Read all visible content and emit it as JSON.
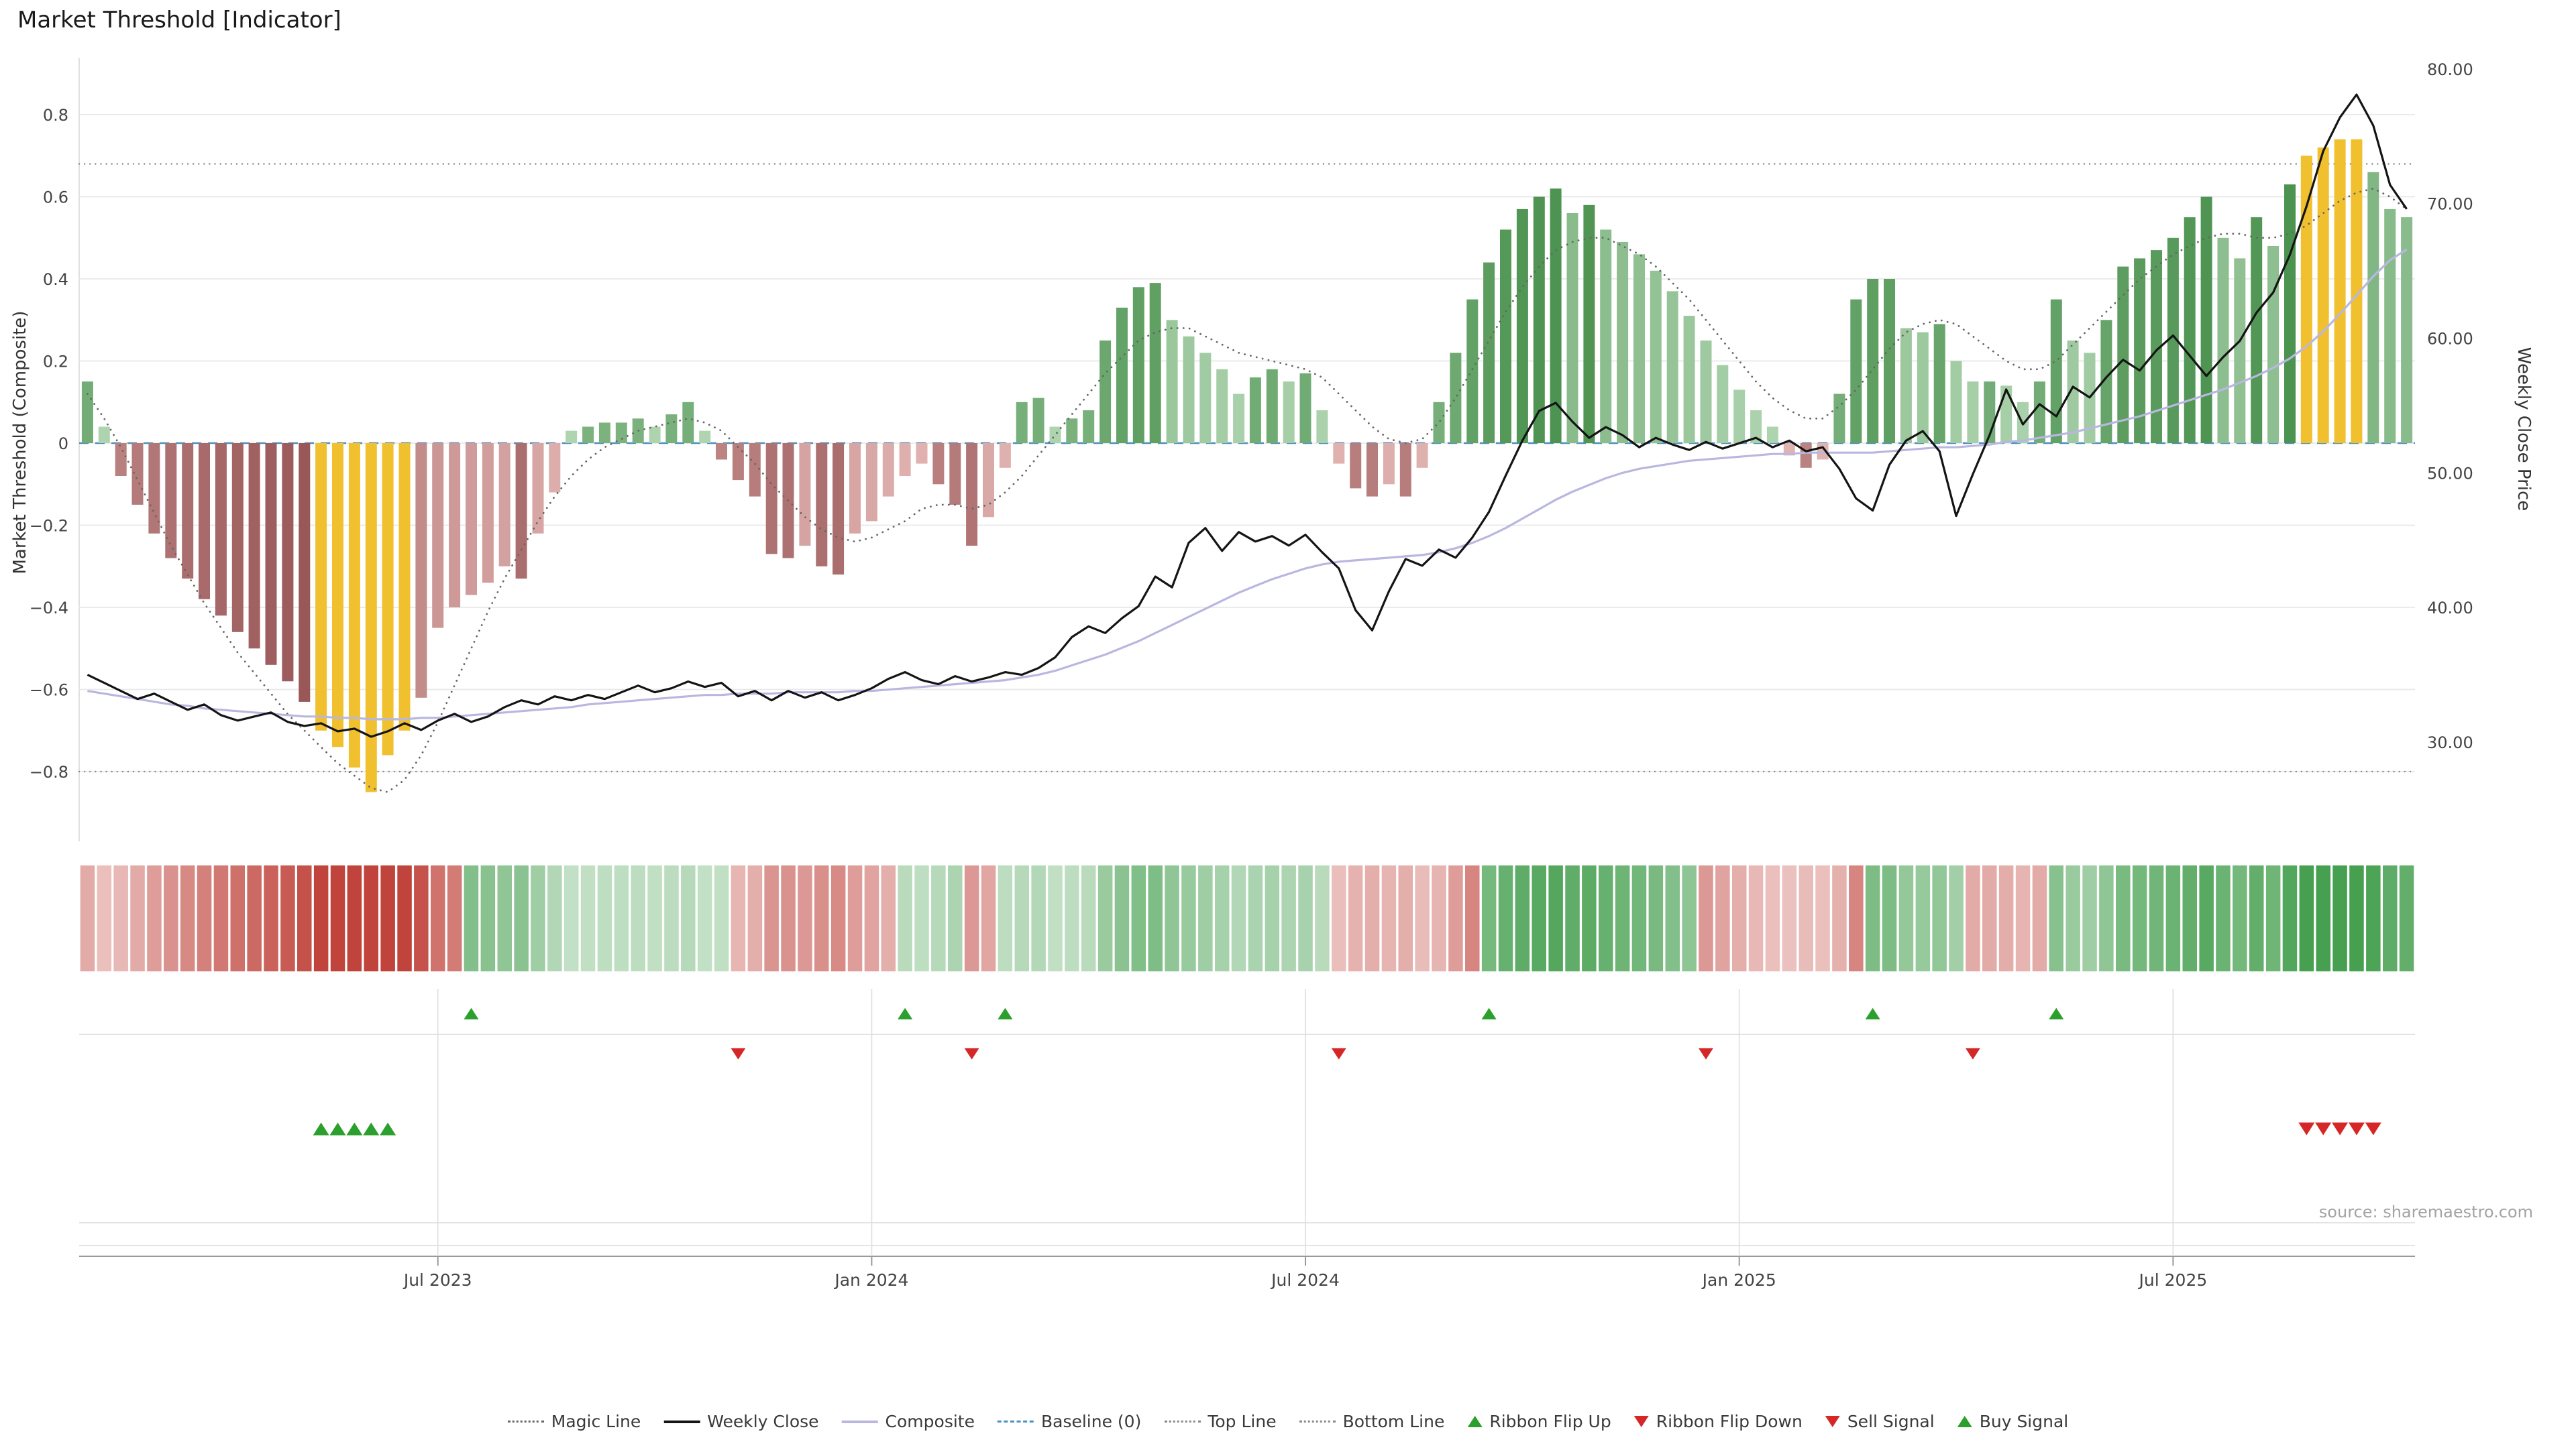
{
  "title": "Market Threshold [Indicator]",
  "left_axis": {
    "label": "Market Threshold (Composite)",
    "ticks": [
      0.8,
      0.6,
      0.4,
      0.2,
      0,
      -0.2,
      -0.4,
      -0.6,
      -0.8
    ]
  },
  "right_axis": {
    "label": "Weekly Close Price",
    "tick_values": [
      80,
      70,
      60,
      50,
      40,
      30
    ],
    "tick_labels": [
      "80.00",
      "70.00",
      "60.00",
      "50.00",
      "40.00",
      "30.00"
    ]
  },
  "x_axis": {
    "tick_labels": [
      "Jul 2023",
      "Jan 2024",
      "Jul 2024",
      "Jan 2025",
      "Jul 2025"
    ],
    "tick_weeks": [
      21,
      47,
      73,
      99,
      125
    ]
  },
  "source": "source: sharemaestro.com",
  "legend": [
    {
      "label": "Magic Line",
      "swatch": "dotted",
      "color": "#666666"
    },
    {
      "label": "Weekly Close",
      "swatch": "solid",
      "color": "#141414"
    },
    {
      "label": "Composite",
      "swatch": "solid",
      "color": "#b9b7e0"
    },
    {
      "label": "Baseline (0)",
      "swatch": "dashed",
      "color": "#4a90c2"
    },
    {
      "label": "Top Line",
      "swatch": "dotted",
      "color": "#888888"
    },
    {
      "label": "Bottom Line",
      "swatch": "dotted",
      "color": "#888888"
    },
    {
      "label": "Ribbon Flip Up",
      "swatch": "tri-up",
      "color": "#2ca02c"
    },
    {
      "label": "Ribbon Flip Down",
      "swatch": "tri-down",
      "color": "#d62728"
    },
    {
      "label": "Sell Signal",
      "swatch": "tri-down",
      "color": "#d62728"
    },
    {
      "label": "Buy Signal",
      "swatch": "tri-up",
      "color": "#2ca02c"
    }
  ],
  "palette": {
    "pos_dark": "#478f4b",
    "pos_light": "#c3e2c4",
    "neg_dark": "#955253",
    "neg_light": "#f0c6c3",
    "gold": "#f0c02e",
    "close": "#141414",
    "composite_line": "#b9b7e0",
    "magic": "#666666",
    "baseline": "#4a90c2",
    "top_bottom": "#888888",
    "grid": "#e8e8e8",
    "flip_up": "#2ca02c",
    "flip_down": "#d62728",
    "ribbon_red": "#c0443c",
    "ribbon_green": "#46a050"
  },
  "chart_data": {
    "type": "bar",
    "title": "Market Threshold [Indicator]",
    "x_unit": "weeks",
    "weeks": 140,
    "x_tick_labels": [
      "Jul 2023",
      "Jan 2024",
      "Jul 2024",
      "Jan 2025",
      "Jul 2025"
    ],
    "x_tick_weeks": [
      21,
      47,
      73,
      99,
      125
    ],
    "ylabel_left": "Market Threshold (Composite)",
    "ylim_left": [
      -0.9,
      0.9
    ],
    "ylabel_right": "Weekly Close Price",
    "ylim_right": [
      23,
      81
    ],
    "top_line": 0.68,
    "bottom_line": -0.8,
    "baseline": 0,
    "gold_threshold": 0.68,
    "series": {
      "composite_histogram": [
        0.15,
        0.04,
        -0.08,
        -0.15,
        -0.22,
        -0.28,
        -0.33,
        -0.38,
        -0.42,
        -0.46,
        -0.5,
        -0.54,
        -0.58,
        -0.63,
        -0.7,
        -0.74,
        -0.79,
        -0.85,
        -0.76,
        -0.7,
        -0.62,
        -0.45,
        -0.4,
        -0.37,
        -0.34,
        -0.3,
        -0.33,
        -0.22,
        -0.12,
        0.03,
        0.04,
        0.05,
        0.05,
        0.06,
        0.04,
        0.07,
        0.1,
        0.03,
        -0.04,
        -0.09,
        -0.13,
        -0.27,
        -0.28,
        -0.25,
        -0.3,
        -0.32,
        -0.22,
        -0.19,
        -0.13,
        -0.08,
        -0.05,
        -0.1,
        -0.15,
        -0.25,
        -0.18,
        -0.06,
        0.1,
        0.11,
        0.04,
        0.06,
        0.08,
        0.25,
        0.33,
        0.38,
        0.39,
        0.3,
        0.26,
        0.22,
        0.18,
        0.12,
        0.16,
        0.18,
        0.15,
        0.17,
        0.08,
        -0.05,
        -0.11,
        -0.13,
        -0.1,
        -0.13,
        -0.06,
        0.1,
        0.22,
        0.35,
        0.44,
        0.52,
        0.57,
        0.6,
        0.62,
        0.56,
        0.58,
        0.52,
        0.49,
        0.46,
        0.42,
        0.37,
        0.31,
        0.25,
        0.19,
        0.13,
        0.08,
        0.04,
        -0.03,
        -0.06,
        -0.04,
        0.12,
        0.35,
        0.4,
        0.4,
        0.28,
        0.27,
        0.29,
        0.2,
        0.15,
        0.15,
        0.14,
        0.1,
        0.15,
        0.35,
        0.25,
        0.22,
        0.3,
        0.43,
        0.45,
        0.47,
        0.5,
        0.55,
        0.6,
        0.5,
        0.45,
        0.55,
        0.48,
        0.63,
        0.7,
        0.72,
        0.74,
        0.74,
        0.66,
        0.57,
        0.55
      ],
      "weekly_close": [
        35.0,
        34.4,
        33.8,
        33.2,
        33.6,
        33.0,
        32.4,
        32.8,
        32.0,
        31.6,
        31.9,
        32.2,
        31.5,
        31.2,
        31.4,
        30.8,
        31.0,
        30.4,
        30.8,
        31.4,
        30.9,
        31.6,
        32.1,
        31.5,
        31.9,
        32.6,
        33.1,
        32.8,
        33.4,
        33.1,
        33.5,
        33.2,
        33.7,
        34.2,
        33.7,
        34.0,
        34.5,
        34.1,
        34.4,
        33.4,
        33.8,
        33.1,
        33.8,
        33.3,
        33.7,
        33.1,
        33.5,
        34.0,
        34.7,
        35.2,
        34.6,
        34.3,
        34.9,
        34.5,
        34.8,
        35.2,
        35.0,
        35.5,
        36.3,
        37.8,
        38.6,
        38.1,
        39.2,
        40.1,
        42.3,
        41.5,
        44.8,
        45.9,
        44.2,
        45.6,
        44.9,
        45.3,
        44.6,
        45.4,
        44.1,
        42.9,
        39.8,
        38.3,
        41.2,
        43.6,
        43.1,
        44.3,
        43.7,
        45.2,
        47.1,
        49.8,
        52.4,
        54.6,
        55.2,
        53.8,
        52.6,
        53.4,
        52.8,
        51.9,
        52.6,
        52.1,
        51.7,
        52.3,
        51.8,
        52.2,
        52.6,
        51.9,
        52.4,
        51.6,
        51.9,
        50.3,
        48.1,
        47.2,
        50.6,
        52.4,
        53.1,
        51.6,
        46.8,
        49.9,
        52.8,
        56.2,
        53.6,
        55.1,
        54.2,
        56.4,
        55.6,
        57.1,
        58.4,
        57.6,
        59.1,
        60.2,
        58.7,
        57.2,
        58.6,
        59.8,
        61.9,
        63.4,
        66.2,
        69.8,
        73.9,
        76.4,
        78.1,
        75.8,
        71.4,
        69.6
      ],
      "composite_line": [
        33.8,
        33.6,
        33.4,
        33.2,
        33.0,
        32.8,
        32.7,
        32.5,
        32.4,
        32.3,
        32.2,
        32.1,
        32.0,
        31.9,
        31.9,
        31.8,
        31.8,
        31.7,
        31.7,
        31.7,
        31.8,
        31.8,
        31.9,
        32.0,
        32.1,
        32.2,
        32.3,
        32.4,
        32.5,
        32.6,
        32.8,
        32.9,
        33.0,
        33.1,
        33.2,
        33.3,
        33.4,
        33.5,
        33.5,
        33.6,
        33.6,
        33.6,
        33.7,
        33.7,
        33.7,
        33.7,
        33.8,
        33.8,
        33.9,
        34.0,
        34.1,
        34.2,
        34.3,
        34.4,
        34.5,
        34.6,
        34.8,
        35.0,
        35.3,
        35.7,
        36.1,
        36.5,
        37.0,
        37.5,
        38.1,
        38.7,
        39.3,
        39.9,
        40.5,
        41.1,
        41.6,
        42.1,
        42.5,
        42.9,
        43.2,
        43.4,
        43.5,
        43.6,
        43.7,
        43.8,
        43.9,
        44.1,
        44.4,
        44.8,
        45.3,
        45.9,
        46.6,
        47.3,
        48.0,
        48.6,
        49.1,
        49.6,
        50.0,
        50.3,
        50.5,
        50.7,
        50.9,
        51.0,
        51.1,
        51.2,
        51.3,
        51.4,
        51.4,
        51.5,
        51.5,
        51.5,
        51.5,
        51.5,
        51.6,
        51.7,
        51.8,
        51.9,
        51.9,
        52.0,
        52.1,
        52.3,
        52.4,
        52.6,
        52.8,
        53.0,
        53.3,
        53.6,
        53.9,
        54.2,
        54.6,
        55.0,
        55.4,
        55.8,
        56.2,
        56.7,
        57.2,
        57.8,
        58.5,
        59.4,
        60.5,
        61.8,
        63.2,
        64.6,
        65.8,
        66.6
      ],
      "magic_line": [
        0.12,
        0.06,
        -0.01,
        -0.09,
        -0.17,
        -0.25,
        -0.32,
        -0.39,
        -0.45,
        -0.51,
        -0.56,
        -0.61,
        -0.66,
        -0.7,
        -0.74,
        -0.78,
        -0.81,
        -0.84,
        -0.85,
        -0.82,
        -0.76,
        -0.68,
        -0.59,
        -0.5,
        -0.41,
        -0.33,
        -0.26,
        -0.19,
        -0.13,
        -0.08,
        -0.04,
        -0.01,
        0.01,
        0.03,
        0.04,
        0.05,
        0.06,
        0.05,
        0.03,
        -0.01,
        -0.05,
        -0.1,
        -0.14,
        -0.18,
        -0.21,
        -0.23,
        -0.24,
        -0.23,
        -0.21,
        -0.19,
        -0.16,
        -0.15,
        -0.15,
        -0.16,
        -0.15,
        -0.12,
        -0.08,
        -0.03,
        0.02,
        0.07,
        0.12,
        0.17,
        0.21,
        0.25,
        0.27,
        0.28,
        0.28,
        0.26,
        0.24,
        0.22,
        0.21,
        0.2,
        0.19,
        0.18,
        0.16,
        0.12,
        0.08,
        0.04,
        0.01,
        0.0,
        0.01,
        0.05,
        0.11,
        0.18,
        0.25,
        0.32,
        0.38,
        0.43,
        0.47,
        0.49,
        0.5,
        0.5,
        0.48,
        0.46,
        0.43,
        0.39,
        0.35,
        0.3,
        0.25,
        0.2,
        0.15,
        0.11,
        0.08,
        0.06,
        0.06,
        0.09,
        0.13,
        0.18,
        0.23,
        0.27,
        0.29,
        0.3,
        0.29,
        0.26,
        0.23,
        0.2,
        0.18,
        0.18,
        0.2,
        0.24,
        0.28,
        0.32,
        0.36,
        0.4,
        0.43,
        0.46,
        0.48,
        0.5,
        0.51,
        0.51,
        0.5,
        0.5,
        0.51,
        0.53,
        0.56,
        0.59,
        0.61,
        0.62,
        0.6,
        0.57
      ]
    },
    "signals": {
      "ribbon_flip_up": [
        23,
        49,
        55,
        84,
        107,
        118
      ],
      "ribbon_flip_down": [
        39,
        53,
        75,
        97,
        113
      ],
      "buy": [
        14,
        15,
        16,
        17,
        18
      ],
      "sell": [
        133,
        134,
        135,
        136,
        137
      ]
    }
  }
}
